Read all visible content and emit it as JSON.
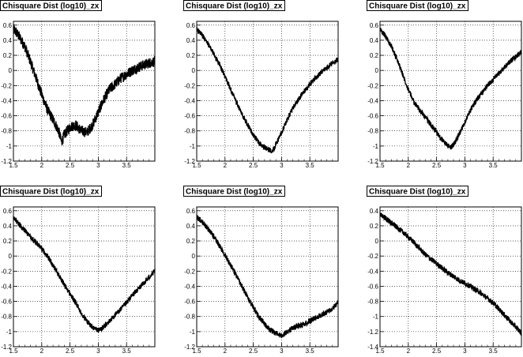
{
  "chart_data": [
    {
      "type": "line",
      "title": "Chisquare Dist (log10)_zx",
      "xlim": [
        1.5,
        4.0
      ],
      "ylim": [
        -1.2,
        0.65
      ],
      "xticks": [
        1.5,
        2,
        2.5,
        3,
        3.5
      ],
      "xtick_labels": [
        "1.5",
        "2",
        "2.5",
        "3",
        "3.5"
      ],
      "yticks": [
        -1.2,
        -1,
        -0.8,
        -0.6,
        -0.4,
        -0.2,
        0,
        0.2,
        0.4,
        0.6
      ],
      "ytick_labels": [
        "-1.2",
        "-1",
        "-0.8",
        "-0.6",
        "-0.4",
        "-0.2",
        "0",
        "0.2",
        "0.4",
        "0.6"
      ],
      "grid": true,
      "series": [
        {
          "x": [
            1.5,
            1.6,
            1.7,
            1.8,
            1.9,
            2.0,
            2.1,
            2.2,
            2.3,
            2.35,
            2.4,
            2.5,
            2.6,
            2.7,
            2.8,
            2.9,
            3.0,
            3.1,
            3.2,
            3.3,
            3.4,
            3.5,
            3.6,
            3.7,
            3.8,
            3.9,
            4.0
          ],
          "y": [
            0.55,
            0.45,
            0.32,
            0.12,
            -0.1,
            -0.32,
            -0.52,
            -0.65,
            -0.8,
            -0.95,
            -0.85,
            -0.75,
            -0.72,
            -0.8,
            -0.82,
            -0.72,
            -0.55,
            -0.38,
            -0.25,
            -0.18,
            -0.1,
            -0.05,
            0.0,
            0.04,
            0.07,
            0.1,
            0.12
          ]
        }
      ]
    },
    {
      "type": "line",
      "title": "Chisquare Dist (log10)_zx",
      "xlim": [
        1.5,
        4.0
      ],
      "ylim": [
        -1.2,
        0.65
      ],
      "xticks": [
        1.5,
        2,
        2.5,
        3,
        3.5
      ],
      "xtick_labels": [
        "1.5",
        "2",
        "2.5",
        "3",
        "3.5"
      ],
      "yticks": [
        -1.2,
        -1,
        -0.8,
        -0.6,
        -0.4,
        -0.2,
        0,
        0.2,
        0.4,
        0.6
      ],
      "ytick_labels": [
        "-1.2",
        "-1",
        "-0.8",
        "-0.6",
        "-0.4",
        "-0.2",
        "0",
        "0.2",
        "0.4",
        "0.6"
      ],
      "grid": true,
      "series": [
        {
          "x": [
            1.5,
            1.6,
            1.7,
            1.8,
            1.9,
            2.0,
            2.1,
            2.2,
            2.3,
            2.4,
            2.5,
            2.6,
            2.7,
            2.8,
            2.85,
            2.9,
            3.0,
            3.1,
            3.2,
            3.3,
            3.4,
            3.5,
            3.6,
            3.7,
            3.8,
            3.9,
            4.0
          ],
          "y": [
            0.55,
            0.46,
            0.35,
            0.22,
            0.08,
            -0.08,
            -0.25,
            -0.42,
            -0.58,
            -0.72,
            -0.85,
            -0.96,
            -1.02,
            -1.06,
            -1.05,
            -0.98,
            -0.82,
            -0.65,
            -0.5,
            -0.38,
            -0.28,
            -0.18,
            -0.1,
            -0.03,
            0.04,
            0.1,
            0.15
          ]
        }
      ]
    },
    {
      "type": "line",
      "title": "Chisquare Dist (log10)_zx",
      "xlim": [
        1.5,
        4.0
      ],
      "ylim": [
        -1.2,
        0.65
      ],
      "xticks": [
        1.5,
        2,
        2.5,
        3,
        3.5
      ],
      "xtick_labels": [
        "1.5",
        "2",
        "2.5",
        "3",
        "3.5"
      ],
      "yticks": [
        -1.2,
        -1,
        -0.8,
        -0.6,
        -0.4,
        -0.2,
        0,
        0.2,
        0.4,
        0.6
      ],
      "ytick_labels": [
        "-1.2",
        "-1",
        "-0.8",
        "-0.6",
        "-0.4",
        "-0.2",
        "0",
        "0.2",
        "0.4",
        "0.6"
      ],
      "grid": true,
      "series": [
        {
          "x": [
            1.5,
            1.6,
            1.7,
            1.8,
            1.9,
            2.0,
            2.1,
            2.2,
            2.3,
            2.4,
            2.5,
            2.6,
            2.7,
            2.75,
            2.8,
            2.9,
            3.0,
            3.1,
            3.2,
            3.3,
            3.4,
            3.5,
            3.6,
            3.7,
            3.8,
            3.9,
            4.0
          ],
          "y": [
            0.55,
            0.45,
            0.32,
            0.15,
            -0.05,
            -0.25,
            -0.42,
            -0.52,
            -0.62,
            -0.72,
            -0.82,
            -0.92,
            -1.0,
            -1.02,
            -0.98,
            -0.85,
            -0.68,
            -0.52,
            -0.4,
            -0.3,
            -0.2,
            -0.12,
            -0.04,
            0.04,
            0.12,
            0.18,
            0.25
          ]
        }
      ]
    },
    {
      "type": "line",
      "title": "Chisquare Dist (log10)_zx",
      "xlim": [
        1.5,
        4.0
      ],
      "ylim": [
        -1.2,
        0.65
      ],
      "xticks": [
        1.5,
        2,
        2.5,
        3,
        3.5
      ],
      "xtick_labels": [
        "1.5",
        "2",
        "2.5",
        "3",
        "3.5"
      ],
      "yticks": [
        -1.2,
        -1,
        -0.8,
        -0.6,
        -0.4,
        -0.2,
        0,
        0.2,
        0.4,
        0.6
      ],
      "ytick_labels": [
        "-1.2",
        "-1",
        "-0.8",
        "-0.6",
        "-0.4",
        "-0.2",
        "0",
        "0.2",
        "0.4",
        "0.6"
      ],
      "grid": true,
      "series": [
        {
          "x": [
            1.5,
            1.6,
            1.7,
            1.8,
            1.9,
            2.0,
            2.1,
            2.2,
            2.3,
            2.4,
            2.5,
            2.6,
            2.7,
            2.8,
            2.9,
            3.0,
            3.1,
            3.2,
            3.3,
            3.4,
            3.5,
            3.6,
            3.7,
            3.8,
            3.9,
            4.0
          ],
          "y": [
            0.5,
            0.42,
            0.34,
            0.25,
            0.18,
            0.1,
            0.0,
            -0.12,
            -0.25,
            -0.38,
            -0.5,
            -0.62,
            -0.75,
            -0.86,
            -0.95,
            -0.98,
            -0.94,
            -0.86,
            -0.78,
            -0.7,
            -0.62,
            -0.52,
            -0.44,
            -0.36,
            -0.28,
            -0.2
          ]
        }
      ]
    },
    {
      "type": "line",
      "title": "Chisquare Dist (log10)_zx",
      "xlim": [
        1.5,
        4.0
      ],
      "ylim": [
        -1.2,
        0.65
      ],
      "xticks": [
        1.5,
        2,
        2.5,
        3,
        3.5
      ],
      "xtick_labels": [
        "1.5",
        "2",
        "2.5",
        "3",
        "3.5"
      ],
      "yticks": [
        -1.2,
        -1,
        -0.8,
        -0.6,
        -0.4,
        -0.2,
        0,
        0.2,
        0.4,
        0.6
      ],
      "ytick_labels": [
        "-1.2",
        "-1",
        "-0.8",
        "-0.6",
        "-0.4",
        "-0.2",
        "0",
        "0.2",
        "0.4",
        "0.6"
      ],
      "grid": true,
      "series": [
        {
          "x": [
            1.5,
            1.6,
            1.7,
            1.8,
            1.9,
            2.0,
            2.1,
            2.2,
            2.3,
            2.4,
            2.5,
            2.6,
            2.7,
            2.8,
            2.9,
            3.0,
            3.1,
            3.2,
            3.3,
            3.4,
            3.5,
            3.6,
            3.7,
            3.8,
            3.9,
            4.0
          ],
          "y": [
            0.52,
            0.45,
            0.36,
            0.26,
            0.14,
            0.02,
            -0.12,
            -0.26,
            -0.4,
            -0.55,
            -0.68,
            -0.8,
            -0.9,
            -0.98,
            -1.02,
            -1.06,
            -1.0,
            -0.95,
            -0.92,
            -0.9,
            -0.86,
            -0.82,
            -0.78,
            -0.74,
            -0.7,
            -0.6
          ]
        }
      ]
    },
    {
      "type": "line",
      "title": "Chisquare Dist (log10)_zx",
      "xlim": [
        1.5,
        4.0
      ],
      "ylim": [
        -1.4,
        0.45
      ],
      "xticks": [
        1.5,
        2,
        2.5,
        3,
        3.5
      ],
      "xtick_labels": [
        "1.5",
        "2",
        "2.5",
        "3",
        "3.5"
      ],
      "yticks": [
        -1.4,
        -1.2,
        -1,
        -0.8,
        -0.6,
        -0.4,
        -0.2,
        0,
        0.2,
        0.4
      ],
      "ytick_labels": [
        "-1.4",
        "-1.2",
        "-1",
        "-0.8",
        "-0.6",
        "-0.4",
        "-0.2",
        "0",
        "0.2",
        "0.4"
      ],
      "grid": true,
      "series": [
        {
          "x": [
            1.5,
            1.6,
            1.7,
            1.8,
            1.9,
            2.0,
            2.1,
            2.2,
            2.3,
            2.4,
            2.5,
            2.6,
            2.7,
            2.8,
            2.9,
            3.0,
            3.1,
            3.2,
            3.3,
            3.4,
            3.5,
            3.6,
            3.7,
            3.8,
            3.9,
            4.0
          ],
          "y": [
            0.35,
            0.3,
            0.24,
            0.18,
            0.12,
            0.05,
            -0.02,
            -0.1,
            -0.18,
            -0.24,
            -0.3,
            -0.36,
            -0.42,
            -0.47,
            -0.52,
            -0.56,
            -0.6,
            -0.65,
            -0.7,
            -0.76,
            -0.82,
            -0.9,
            -0.98,
            -1.06,
            -1.14,
            -1.22
          ]
        }
      ]
    }
  ]
}
